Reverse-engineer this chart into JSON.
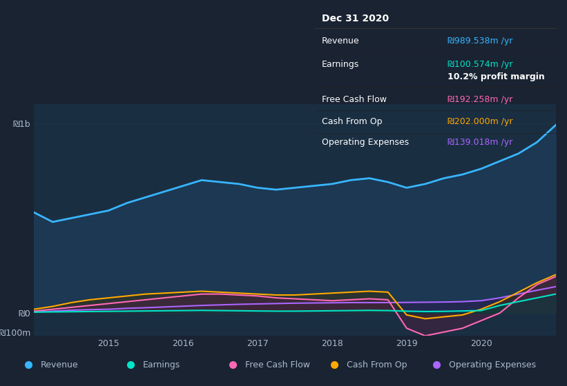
{
  "background_color": "#1a2332",
  "plot_bg_color": "#1a2e42",
  "grid_color": "#2a3f55",
  "text_color": "#aabbcc",
  "x_years": [
    2014.0,
    2014.25,
    2014.5,
    2014.75,
    2015.0,
    2015.25,
    2015.5,
    2015.75,
    2016.0,
    2016.25,
    2016.5,
    2016.75,
    2017.0,
    2017.25,
    2017.5,
    2017.75,
    2018.0,
    2018.25,
    2018.5,
    2018.75,
    2019.0,
    2019.25,
    2019.5,
    2019.75,
    2020.0,
    2020.25,
    2020.5,
    2020.75,
    2021.0
  ],
  "revenue": [
    530,
    480,
    500,
    520,
    540,
    580,
    610,
    640,
    670,
    700,
    690,
    680,
    660,
    650,
    660,
    670,
    680,
    700,
    710,
    690,
    660,
    680,
    710,
    730,
    760,
    800,
    840,
    900,
    990
  ],
  "earnings": [
    5,
    6,
    7,
    8,
    9,
    10,
    11,
    12,
    13,
    14,
    13,
    12,
    11,
    10,
    10,
    11,
    12,
    13,
    14,
    13,
    10,
    8,
    9,
    11,
    13,
    40,
    60,
    80,
    100
  ],
  "free_cash_flow": [
    10,
    20,
    30,
    40,
    50,
    60,
    70,
    80,
    90,
    100,
    100,
    95,
    90,
    80,
    75,
    70,
    65,
    70,
    75,
    70,
    -80,
    -120,
    -100,
    -80,
    -40,
    0,
    80,
    150,
    192
  ],
  "cash_from_op": [
    20,
    35,
    55,
    70,
    80,
    90,
    100,
    105,
    110,
    115,
    110,
    105,
    100,
    95,
    95,
    100,
    105,
    110,
    115,
    110,
    -10,
    -30,
    -20,
    -10,
    20,
    60,
    110,
    160,
    202
  ],
  "operating_expenses": [
    5,
    10,
    15,
    18,
    20,
    25,
    28,
    32,
    36,
    40,
    43,
    46,
    48,
    50,
    52,
    53,
    54,
    55,
    55,
    55,
    56,
    57,
    58,
    60,
    65,
    80,
    100,
    120,
    139
  ],
  "revenue_color": "#38b6ff",
  "revenue_fill": "#1e4060",
  "earnings_color": "#00e5c8",
  "earnings_fill": "#004040",
  "free_cash_flow_color": "#ff69b4",
  "free_cash_flow_fill": "#4a2040",
  "cash_from_op_color": "#ffaa00",
  "cash_from_op_fill": "#3a3010",
  "operating_expenses_color": "#aa66ff",
  "operating_expenses_fill": "#2a1a50",
  "ylim_min": -120,
  "ylim_max": 1100,
  "yticks": [
    -100,
    0,
    1000
  ],
  "ytick_labels": [
    "-₪100m",
    "₪0",
    "₪1b"
  ],
  "tooltip_bg": "#000000",
  "tooltip_title": "Dec 31 2020",
  "tooltip_revenue_val": "₪989.538m /yr",
  "tooltip_earnings_val": "₪100.574m /yr",
  "tooltip_profit_margin": "10.2% profit margin",
  "tooltip_fcf_val": "₪192.258m /yr",
  "tooltip_cfop_val": "₪202.000m /yr",
  "tooltip_opex_val": "₪139.018m /yr",
  "legend_labels": [
    "Revenue",
    "Earnings",
    "Free Cash Flow",
    "Cash From Op",
    "Operating Expenses"
  ],
  "legend_colors": [
    "#38b6ff",
    "#00e5c8",
    "#ff69b4",
    "#ffaa00",
    "#aa66ff"
  ]
}
